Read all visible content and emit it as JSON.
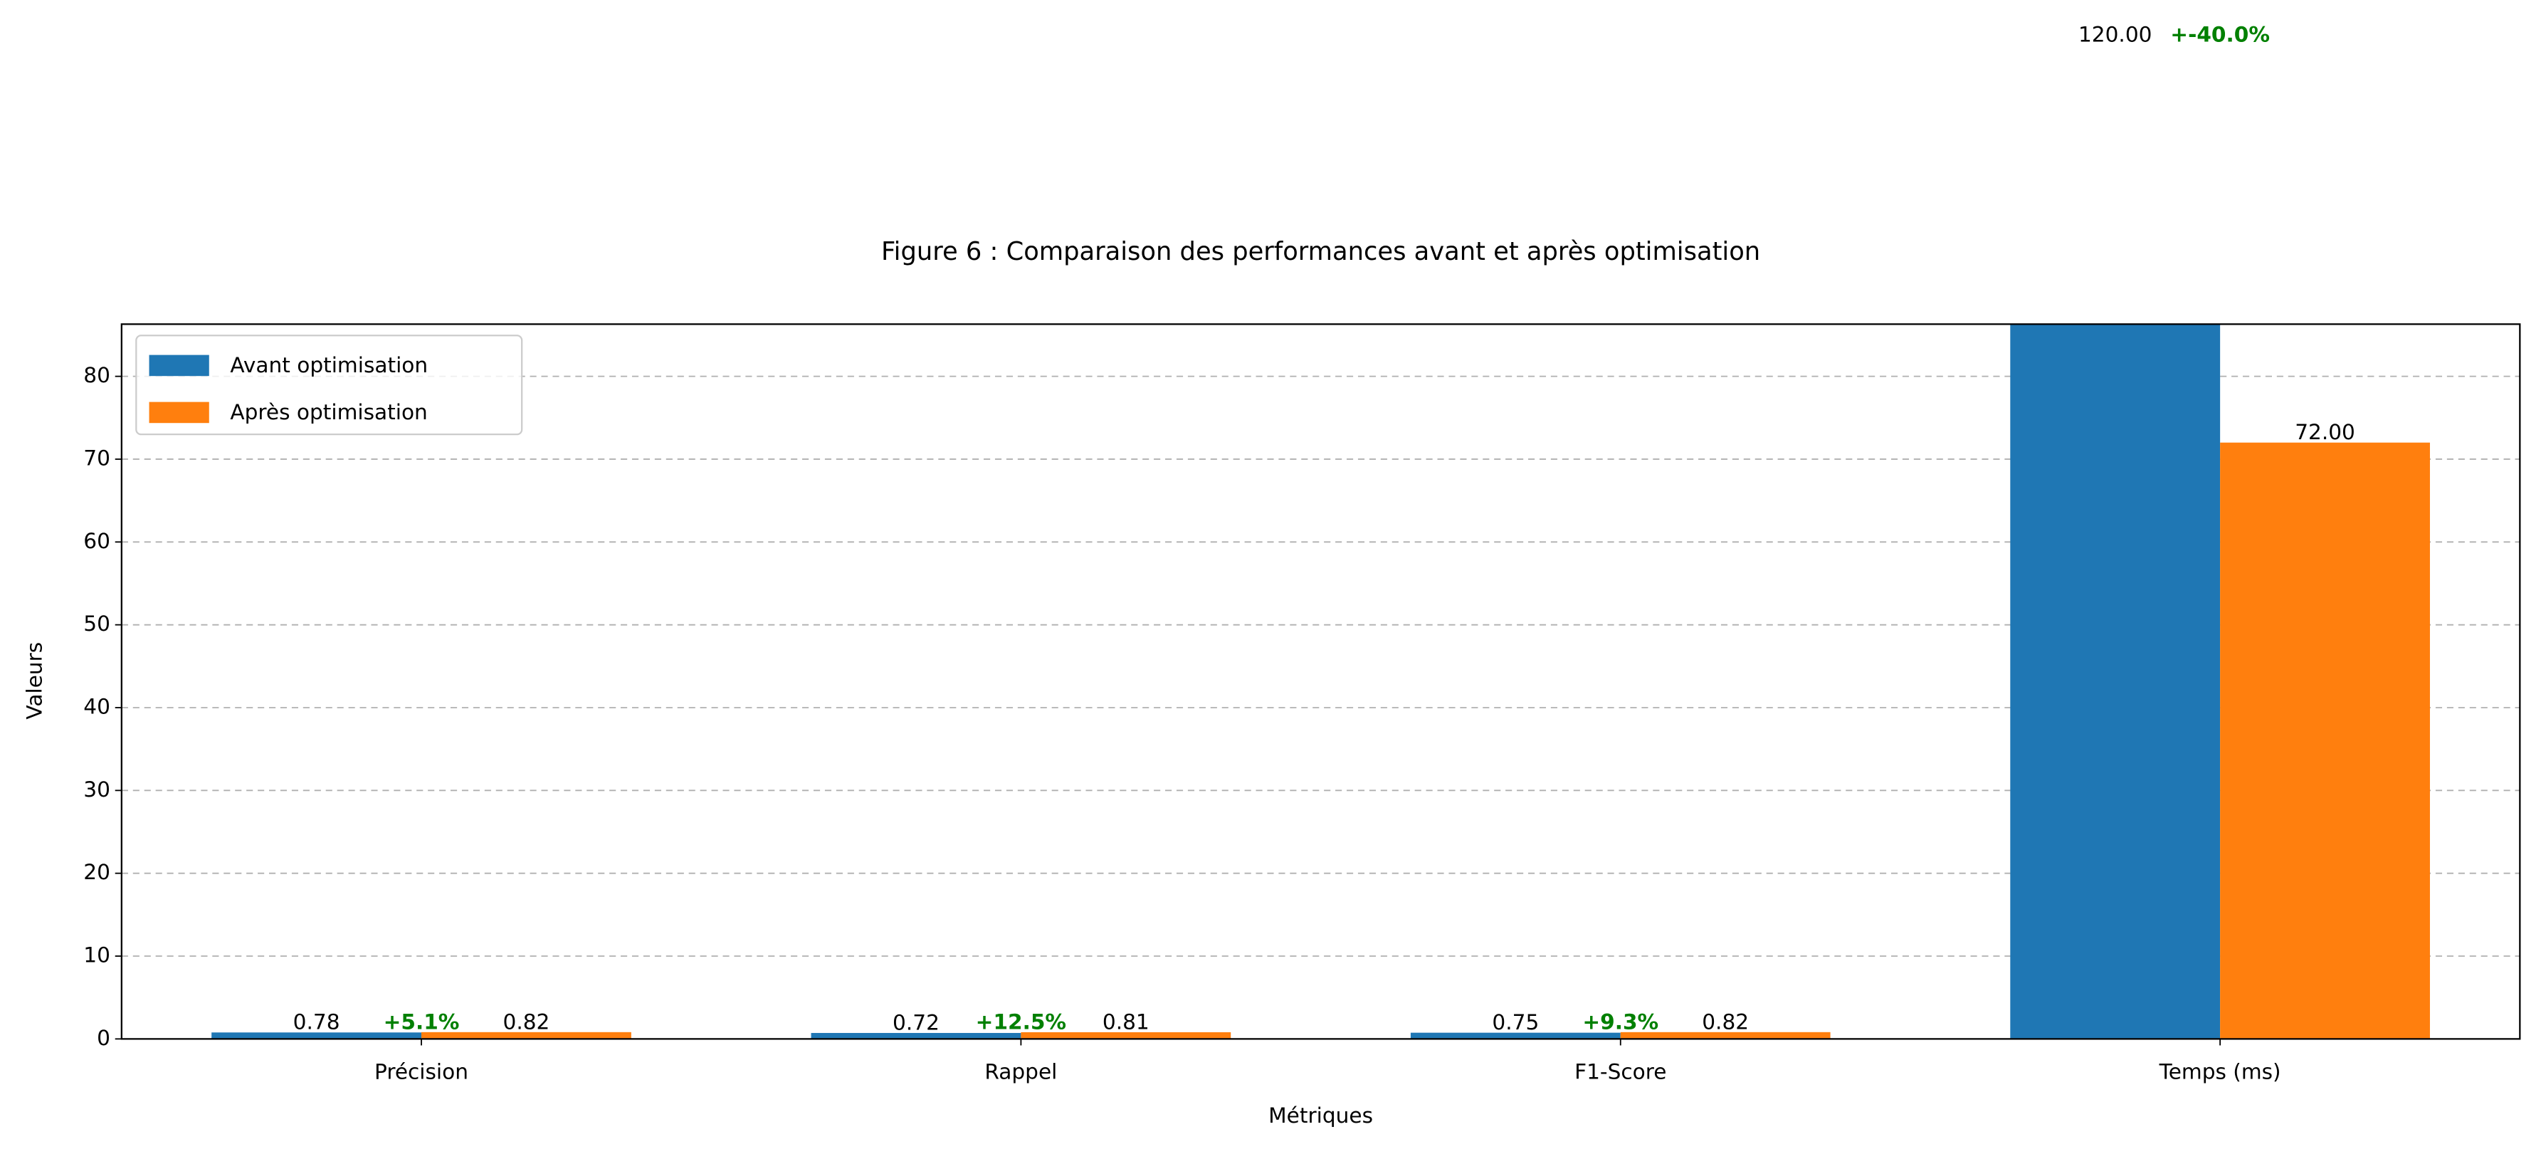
{
  "chart_data": {
    "type": "bar",
    "title": "Figure 6 : Comparaison des performances avant et après optimisation",
    "xlabel": "Métriques",
    "ylabel": "Valeurs",
    "categories": [
      "Précision",
      "Rappel",
      "F1-Score",
      "Temps (ms)"
    ],
    "series": [
      {
        "name": "Avant optimisation",
        "color": "#1f77b4",
        "values": [
          0.78,
          0.72,
          0.75,
          120
        ],
        "value_labels": [
          "0.78",
          "0.72",
          "0.75",
          "120.00"
        ]
      },
      {
        "name": "Après optimisation",
        "color": "#ff7f0e",
        "values": [
          0.82,
          0.81,
          0.82,
          72
        ],
        "value_labels": [
          "0.82",
          "0.81",
          "0.82",
          "72.00"
        ]
      }
    ],
    "improvement_labels": [
      "+5.1%",
      "+12.5%",
      "+9.3%",
      "+-40.0%"
    ],
    "improvement_color": "#008000",
    "ylim": [
      0,
      86.3
    ],
    "yticks": [
      0,
      10,
      20,
      30,
      40,
      50,
      60,
      70,
      80
    ],
    "grid": true,
    "legend": "upper left"
  }
}
